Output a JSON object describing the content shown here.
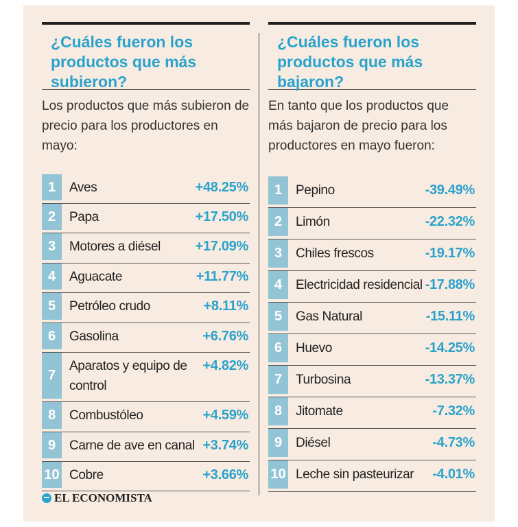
{
  "left": {
    "heading": "¿Cuáles fueron los productos que más subieron?",
    "intro": "Los productos que más subieron de precio para los productores en mayo:",
    "rows": [
      {
        "num": "1",
        "name": "Aves",
        "value": "+48.25%"
      },
      {
        "num": "2",
        "name": "Papa",
        "value": "+17.50%"
      },
      {
        "num": "3",
        "name": "Motores a diésel",
        "value": "+17.09%"
      },
      {
        "num": "4",
        "name": "Aguacate",
        "value": "+11.77%"
      },
      {
        "num": "5",
        "name": "Petróleo crudo",
        "value": "+8.11%"
      },
      {
        "num": "6",
        "name": "Gasolina",
        "value": "+6.76%"
      },
      {
        "num": "7",
        "name": "Aparatos y equipo de control",
        "value": "+4.82%"
      },
      {
        "num": "8",
        "name": "Combustóleo",
        "value": "+4.59%"
      },
      {
        "num": "9",
        "name": "Carne de ave en canal",
        "value": "+3.74%"
      },
      {
        "num": "10",
        "name": "Cobre",
        "value": "+3.66%"
      }
    ]
  },
  "right": {
    "heading": "¿Cuáles fueron los productos que más bajaron?",
    "intro": "En tanto que los productos que más bajaron de precio para los productores en mayo fueron:",
    "rows": [
      {
        "num": "1",
        "name": "Pepino",
        "value": "-39.49%"
      },
      {
        "num": "2",
        "name": "Limón",
        "value": "-22.32%"
      },
      {
        "num": "3",
        "name": "Chiles frescos",
        "value": "-19.17%"
      },
      {
        "num": "4",
        "name": "Electricidad residencial",
        "value": "-17.88%"
      },
      {
        "num": "5",
        "name": "Gas Natural",
        "value": "-15.11%"
      },
      {
        "num": "6",
        "name": "Huevo",
        "value": "-14.25%"
      },
      {
        "num": "7",
        "name": "Turbosina",
        "value": "-13.37%"
      },
      {
        "num": "8",
        "name": "Jitomate",
        "value": "-7.32%"
      },
      {
        "num": "9",
        "name": "Diésel",
        "value": "-4.73%"
      },
      {
        "num": "10",
        "name": "Leche sin pasteurizar",
        "value": "-4.01%"
      }
    ]
  },
  "brand": "EL ECONOMISTA",
  "colors": {
    "accent": "#2aa3cc",
    "number_bg": "#93c4d6",
    "panel_bg": "#f8ebe1"
  }
}
